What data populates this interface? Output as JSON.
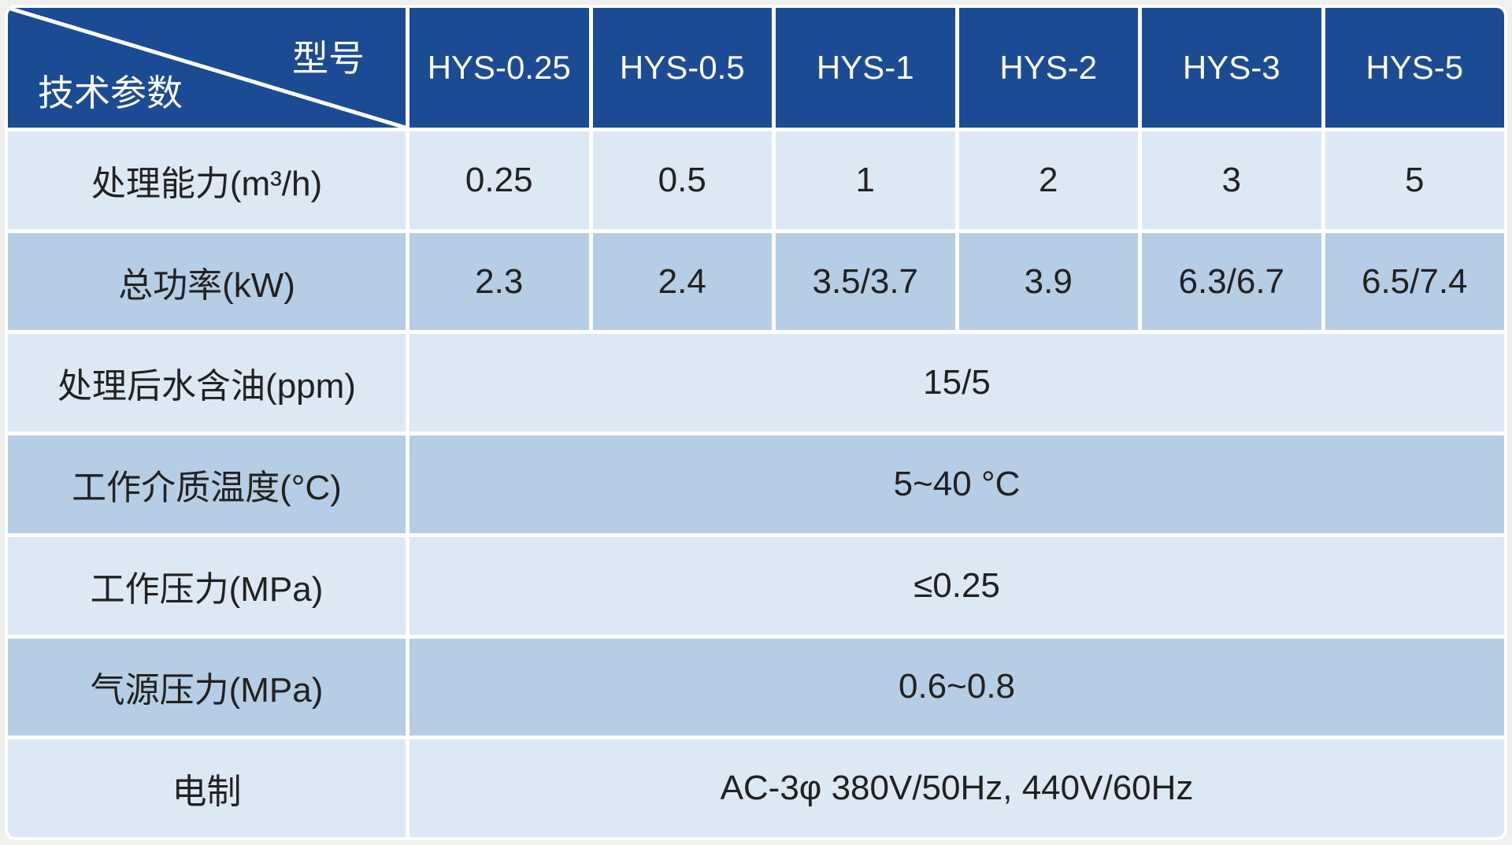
{
  "table": {
    "corner": {
      "top_right_label": "型号",
      "bottom_left_label": "技术参数"
    },
    "models": [
      "HYS-0.25",
      "HYS-0.5",
      "HYS-1",
      "HYS-2",
      "HYS-3",
      "HYS-5"
    ],
    "rows": [
      {
        "label": "处理能力(m³/h)",
        "values": [
          "0.25",
          "0.5",
          "1",
          "2",
          "3",
          "5"
        ]
      },
      {
        "label": "总功率(kW)",
        "values": [
          "2.3",
          "2.4",
          "3.5/3.7",
          "3.9",
          "6.3/6.7",
          "6.5/7.4"
        ]
      },
      {
        "label": "处理后水含油(ppm)",
        "span_value": "15/5"
      },
      {
        "label": "工作介质温度(°C)",
        "span_value": "5~40 °C"
      },
      {
        "label": "工作压力(MPa)",
        "span_value": "≤0.25"
      },
      {
        "label": "气源压力(MPa)",
        "span_value": "0.6~0.8"
      },
      {
        "label": "电制",
        "span_value": "AC-3φ 380V/50Hz, 440V/60Hz"
      }
    ]
  },
  "colors": {
    "header_bg": "#1A4B93",
    "row_light": "#DCE8F3",
    "row_medium": "#B5CEE5",
    "grid_line": "#FFFFFF",
    "header_text": "#FFFFFF",
    "body_text": "#212121",
    "page_bg": "#F0F0EE"
  }
}
